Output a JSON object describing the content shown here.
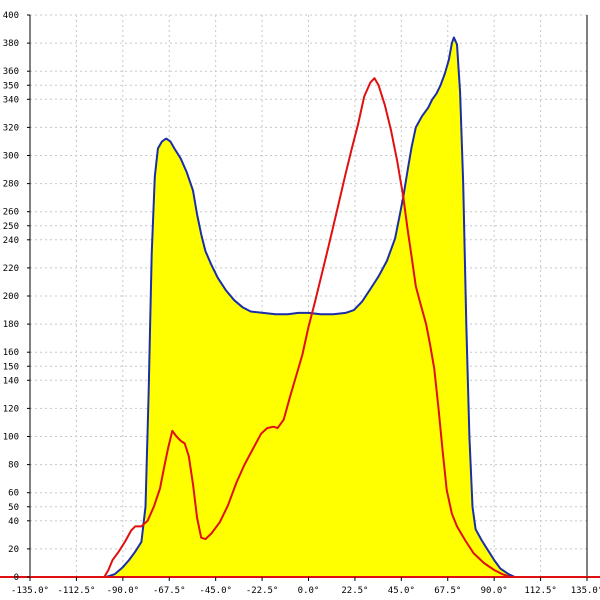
{
  "chart_data": {
    "type": "area",
    "xlabel": "",
    "ylabel": "",
    "xlim": [
      -135,
      135
    ],
    "ylim": [
      0,
      400
    ],
    "grid": true,
    "x_ticks": [
      {
        "value": -135,
        "label": "-135.0°"
      },
      {
        "value": -112.5,
        "label": "-112.5°"
      },
      {
        "value": -90,
        "label": "-90.0°"
      },
      {
        "value": -67.5,
        "label": "-67.5°"
      },
      {
        "value": -45,
        "label": "-45.0°"
      },
      {
        "value": -22.5,
        "label": "-22.5°"
      },
      {
        "value": 0,
        "label": "0.0°"
      },
      {
        "value": 22.5,
        "label": "22.5°"
      },
      {
        "value": 45,
        "label": "45.0°"
      },
      {
        "value": 67.5,
        "label": "67.5°"
      },
      {
        "value": 90,
        "label": "90.0°"
      },
      {
        "value": 112.5,
        "label": "112.5°"
      },
      {
        "value": 135,
        "label": "135.0°"
      }
    ],
    "y_ticks": [
      {
        "value": 0,
        "label": "0"
      },
      {
        "value": 20,
        "label": "20"
      },
      {
        "value": 40,
        "label": "40"
      },
      {
        "value": 50,
        "label": "50"
      },
      {
        "value": 60,
        "label": "60"
      },
      {
        "value": 80,
        "label": "80"
      },
      {
        "value": 100,
        "label": "100"
      },
      {
        "value": 120,
        "label": "120"
      },
      {
        "value": 140,
        "label": "140"
      },
      {
        "value": 150,
        "label": "150"
      },
      {
        "value": 160,
        "label": "160"
      },
      {
        "value": 180,
        "label": "180"
      },
      {
        "value": 200,
        "label": "200"
      },
      {
        "value": 220,
        "label": "220"
      },
      {
        "value": 240,
        "label": "240"
      },
      {
        "value": 250,
        "label": "250"
      },
      {
        "value": 260,
        "label": "260"
      },
      {
        "value": 280,
        "label": "280"
      },
      {
        "value": 300,
        "label": "300"
      },
      {
        "value": 320,
        "label": "320"
      },
      {
        "value": 340,
        "label": "340"
      },
      {
        "value": 350,
        "label": "350"
      },
      {
        "value": 360,
        "label": "360"
      },
      {
        "value": 380,
        "label": "380"
      },
      {
        "value": 400,
        "label": "400"
      }
    ],
    "colors": {
      "fill": "#ffff00",
      "blue_line": "#1a2ea8",
      "red_line": "#e01010",
      "grid": "#c8c8c8",
      "axis": "#000000",
      "baseline": "#e01010"
    },
    "series": [
      {
        "id": "blue",
        "filled": true,
        "points": [
          [
            -135,
            0
          ],
          [
            -98,
            0
          ],
          [
            -94,
            2
          ],
          [
            -90,
            7
          ],
          [
            -87,
            12
          ],
          [
            -84,
            18
          ],
          [
            -81,
            25
          ],
          [
            -79,
            50
          ],
          [
            -77.5,
            130
          ],
          [
            -76,
            230
          ],
          [
            -74.5,
            285
          ],
          [
            -73,
            305
          ],
          [
            -71,
            310
          ],
          [
            -69,
            312
          ],
          [
            -67,
            310
          ],
          [
            -65,
            305
          ],
          [
            -62,
            298
          ],
          [
            -59,
            288
          ],
          [
            -56,
            275
          ],
          [
            -54,
            258
          ],
          [
            -52,
            244
          ],
          [
            -50,
            232
          ],
          [
            -47,
            222
          ],
          [
            -44,
            213
          ],
          [
            -40,
            204
          ],
          [
            -36,
            197
          ],
          [
            -32,
            192
          ],
          [
            -28,
            189
          ],
          [
            -22,
            188
          ],
          [
            -16,
            187
          ],
          [
            -10,
            187
          ],
          [
            -5,
            188
          ],
          [
            0,
            188
          ],
          [
            6,
            187
          ],
          [
            12,
            187
          ],
          [
            18,
            188
          ],
          [
            22,
            190
          ],
          [
            26,
            196
          ],
          [
            30,
            205
          ],
          [
            34,
            214
          ],
          [
            38,
            225
          ],
          [
            42,
            241
          ],
          [
            44,
            256
          ],
          [
            46,
            271
          ],
          [
            48,
            289
          ],
          [
            50,
            306
          ],
          [
            52,
            320
          ],
          [
            55,
            328
          ],
          [
            58,
            334
          ],
          [
            60,
            340
          ],
          [
            62,
            344
          ],
          [
            64,
            350
          ],
          [
            66,
            358
          ],
          [
            68,
            368
          ],
          [
            69.5,
            380
          ],
          [
            70.5,
            384
          ],
          [
            72,
            379
          ],
          [
            73.5,
            345
          ],
          [
            75,
            280
          ],
          [
            76.5,
            180
          ],
          [
            78,
            100
          ],
          [
            79.5,
            50
          ],
          [
            81,
            34
          ],
          [
            84,
            26
          ],
          [
            87,
            19
          ],
          [
            90,
            12
          ],
          [
            93,
            6
          ],
          [
            97,
            2
          ],
          [
            100,
            0
          ],
          [
            135,
            0
          ]
        ]
      },
      {
        "id": "red",
        "filled": false,
        "points": [
          [
            -135,
            0
          ],
          [
            -99,
            0
          ],
          [
            -97,
            5
          ],
          [
            -95,
            12
          ],
          [
            -92,
            18
          ],
          [
            -89,
            25
          ],
          [
            -86,
            33
          ],
          [
            -84,
            36
          ],
          [
            -81,
            36
          ],
          [
            -78,
            40
          ],
          [
            -75,
            50
          ],
          [
            -72,
            63
          ],
          [
            -70,
            78
          ],
          [
            -68,
            92
          ],
          [
            -66,
            104
          ],
          [
            -64,
            100
          ],
          [
            -62,
            97
          ],
          [
            -60,
            95
          ],
          [
            -58,
            86
          ],
          [
            -56,
            66
          ],
          [
            -54,
            42
          ],
          [
            -52,
            28
          ],
          [
            -50,
            27
          ],
          [
            -47,
            31
          ],
          [
            -43,
            39
          ],
          [
            -39,
            51
          ],
          [
            -35,
            67
          ],
          [
            -31,
            80
          ],
          [
            -27,
            91
          ],
          [
            -23,
            102
          ],
          [
            -20,
            106
          ],
          [
            -17,
            107
          ],
          [
            -15,
            106
          ],
          [
            -12,
            112
          ],
          [
            -9,
            128
          ],
          [
            -6,
            143
          ],
          [
            -3,
            158
          ],
          [
            0,
            178
          ],
          [
            3,
            195
          ],
          [
            6,
            213
          ],
          [
            10,
            237
          ],
          [
            14,
            262
          ],
          [
            18,
            287
          ],
          [
            21,
            305
          ],
          [
            24,
            322
          ],
          [
            27,
            342
          ],
          [
            30,
            352
          ],
          [
            32,
            355
          ],
          [
            34,
            350
          ],
          [
            37,
            336
          ],
          [
            40,
            318
          ],
          [
            43,
            296
          ],
          [
            46,
            270
          ],
          [
            48,
            248
          ],
          [
            50,
            228
          ],
          [
            52,
            207
          ],
          [
            54,
            196
          ],
          [
            57,
            180
          ],
          [
            59,
            165
          ],
          [
            61,
            148
          ],
          [
            63,
            120
          ],
          [
            65,
            90
          ],
          [
            67,
            62
          ],
          [
            69.5,
            45
          ],
          [
            72,
            36
          ],
          [
            76,
            26
          ],
          [
            80,
            17
          ],
          [
            85,
            10
          ],
          [
            90,
            5
          ],
          [
            94,
            2
          ],
          [
            98,
            0
          ],
          [
            135,
            0
          ]
        ]
      }
    ]
  }
}
